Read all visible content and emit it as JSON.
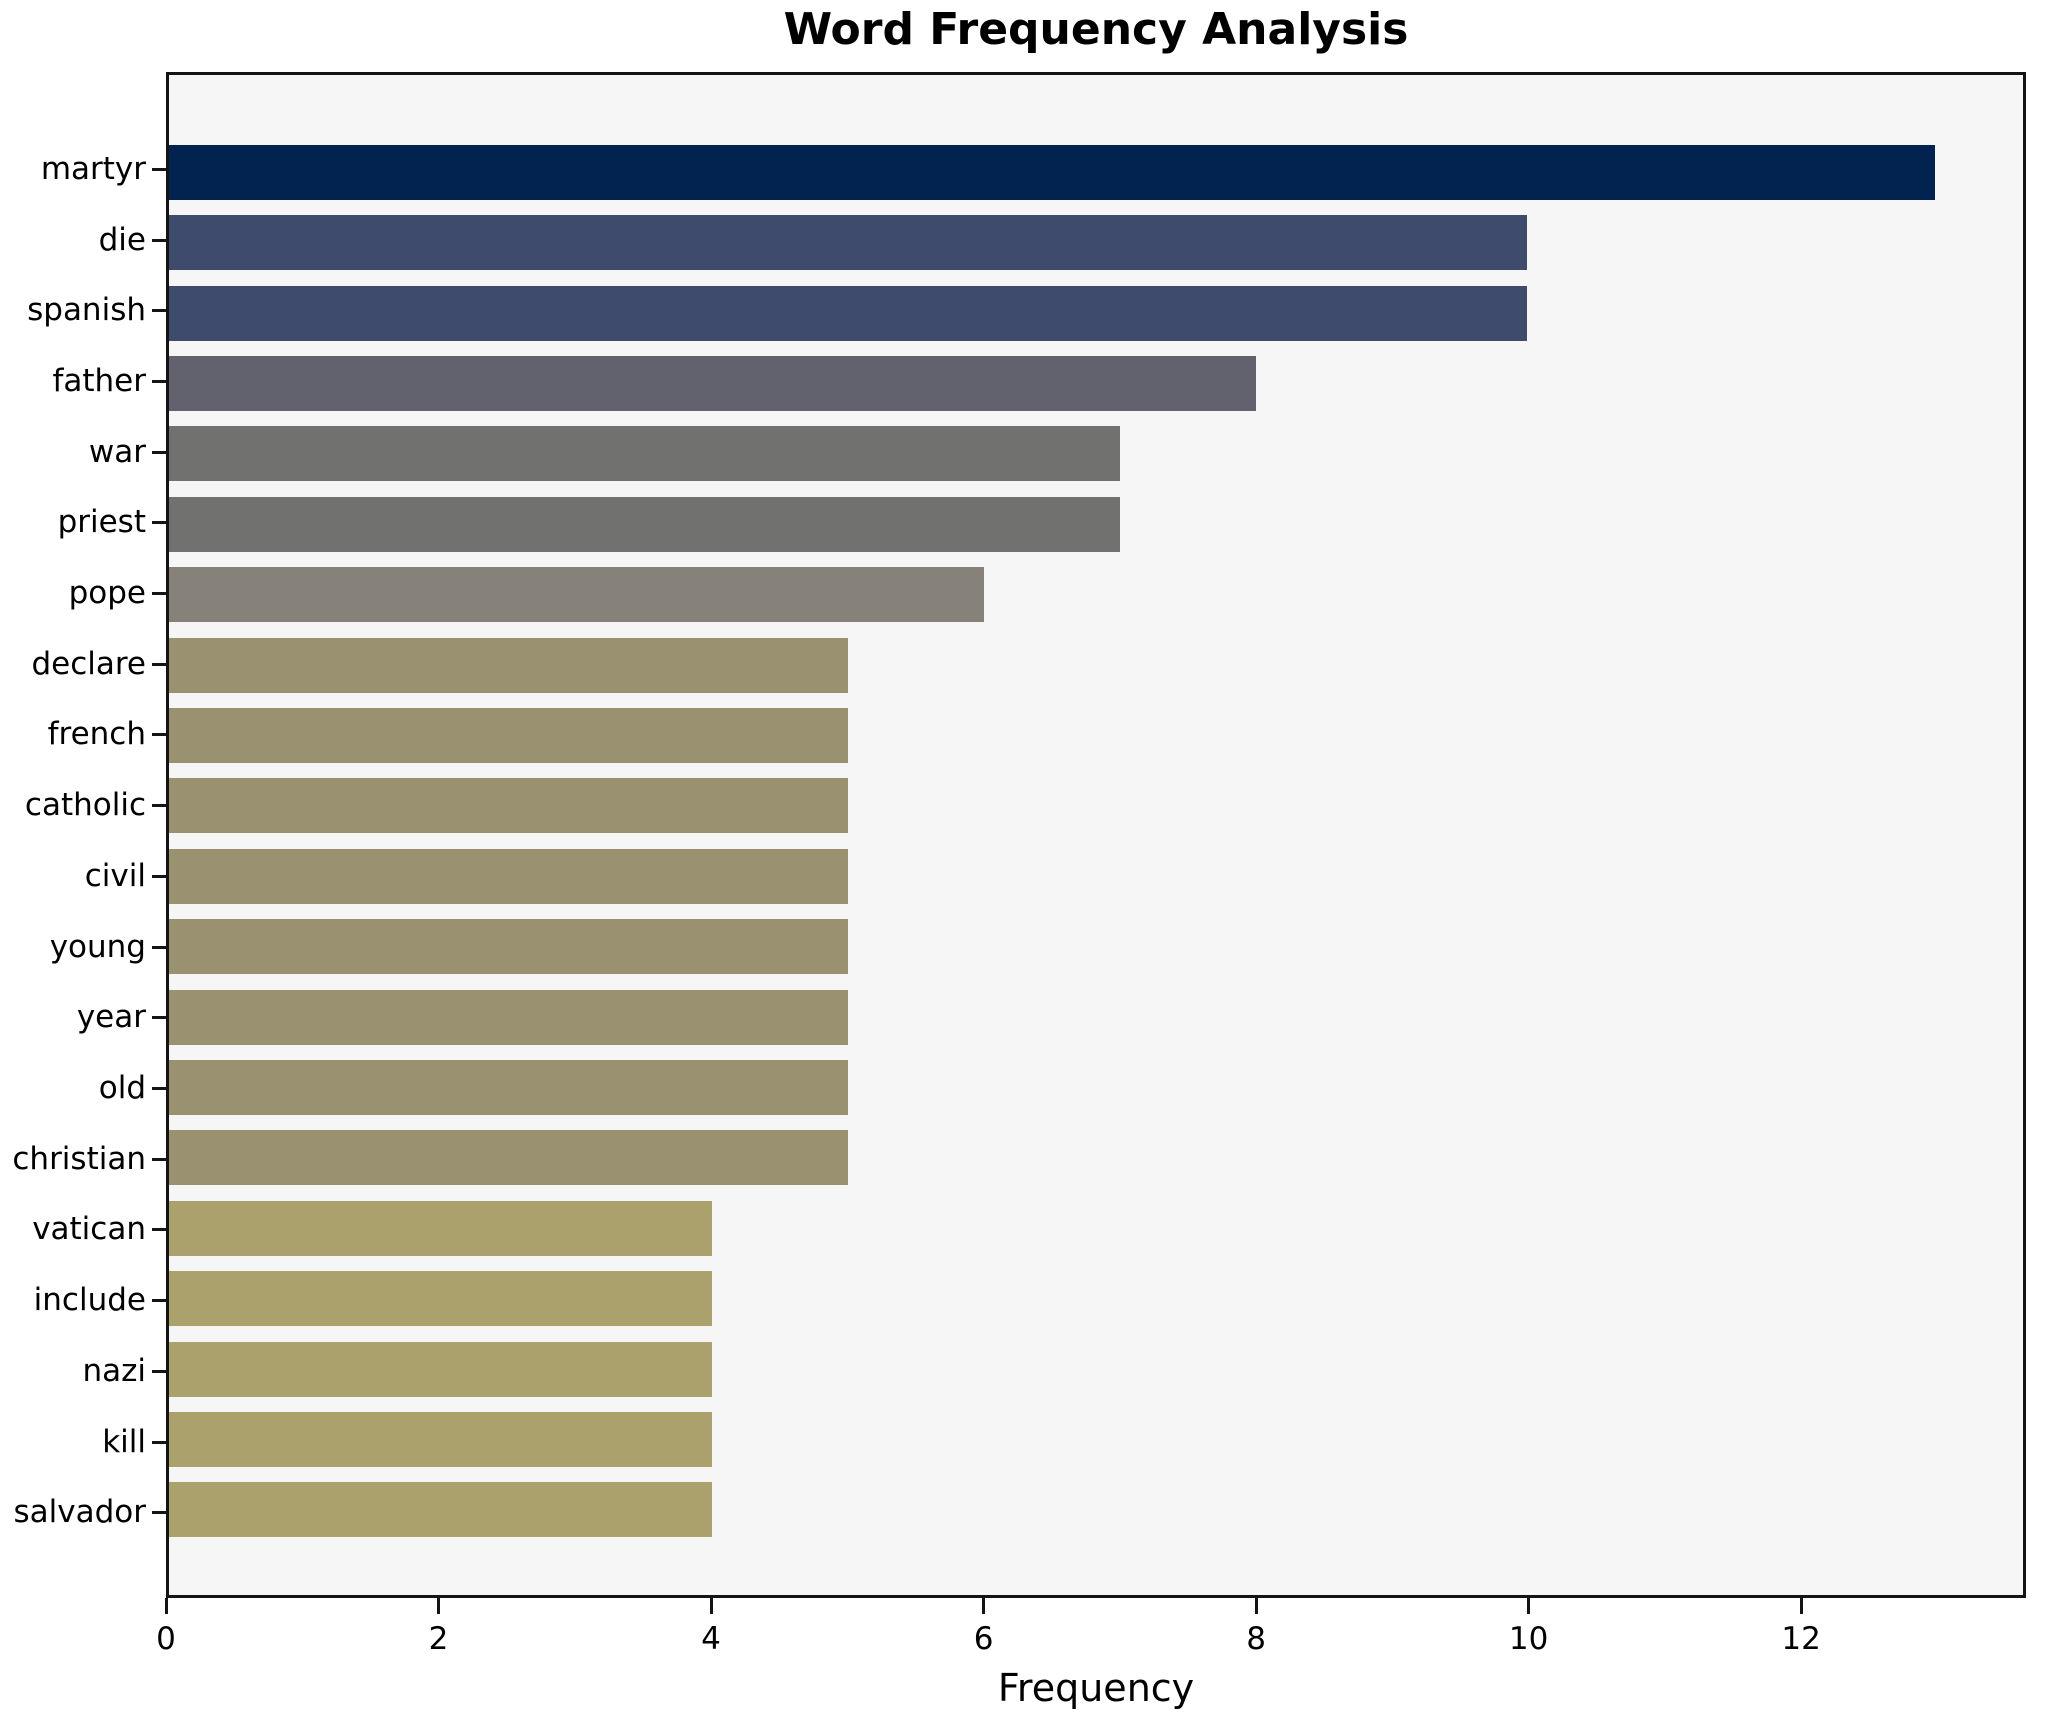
{
  "chart": {
    "title": "Word Frequency Analysis",
    "xlabel": "Frequency"
  },
  "colors": {
    "plot_background": "#f6f6f7",
    "figure_background": "#ffffff",
    "axis": "#141414",
    "text": "#000000"
  },
  "chart_data": {
    "type": "bar",
    "orientation": "horizontal",
    "title": "Word Frequency Analysis",
    "xlabel": "Frequency",
    "ylabel": "",
    "categories": [
      "martyr",
      "die",
      "spanish",
      "father",
      "war",
      "priest",
      "pope",
      "declare",
      "french",
      "catholic",
      "civil",
      "young",
      "year",
      "old",
      "christian",
      "vatican",
      "include",
      "nazi",
      "kill",
      "salvador"
    ],
    "values": [
      13,
      10,
      10,
      8,
      7,
      7,
      6,
      5,
      5,
      5,
      5,
      5,
      5,
      5,
      5,
      4,
      4,
      4,
      4,
      4
    ],
    "bar_colors": [
      "#02234f",
      "#3e4b6d",
      "#3e4b6d",
      "#62626e",
      "#717170",
      "#717170",
      "#86827a",
      "#999170",
      "#999170",
      "#999170",
      "#999170",
      "#999170",
      "#999170",
      "#999170",
      "#999170",
      "#aaa16d",
      "#aaa16d",
      "#aaa16d",
      "#aaa16d",
      "#aaa16d"
    ],
    "x_ticks": [
      0,
      2,
      4,
      6,
      8,
      10,
      12
    ],
    "xlim": [
      0,
      13.65
    ],
    "grid": false,
    "legend_position": "none",
    "bar_height_frac": 0.78
  }
}
